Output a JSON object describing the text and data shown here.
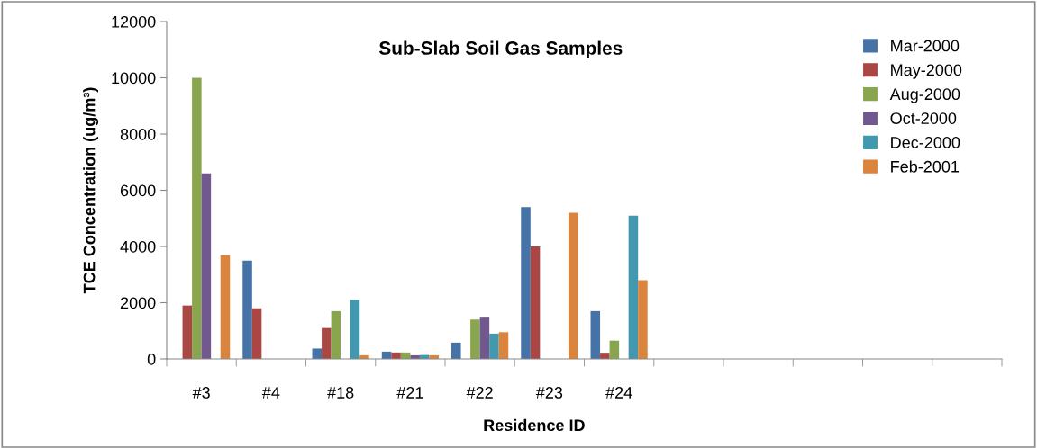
{
  "chart_data": {
    "type": "bar",
    "title": "Sub-Slab Soil Gas Samples",
    "xlabel": "Residence ID",
    "ylabel": "TCE Concentration (ug/m³)",
    "categories": [
      "#3",
      "#4",
      "#18",
      "#21",
      "#22",
      "#23",
      "#24",
      null,
      null,
      null,
      null,
      null
    ],
    "series": [
      {
        "name": "Mar-2000",
        "color": "#4572a7",
        "values": [
          null,
          3500,
          370,
          260,
          580,
          5400,
          1700,
          null,
          null,
          null,
          null,
          null
        ]
      },
      {
        "name": "May-2000",
        "color": "#aa4643",
        "values": [
          1900,
          1800,
          1100,
          230,
          null,
          4000,
          220,
          null,
          null,
          null,
          null,
          null
        ]
      },
      {
        "name": "Aug-2000",
        "color": "#89a54e",
        "values": [
          10000,
          null,
          1700,
          230,
          1400,
          null,
          650,
          null,
          null,
          null,
          null,
          null
        ]
      },
      {
        "name": "Oct-2000",
        "color": "#71588f",
        "values": [
          6600,
          null,
          null,
          130,
          1500,
          null,
          null,
          null,
          null,
          null,
          null,
          null
        ]
      },
      {
        "name": "Dec-2000",
        "color": "#4198af",
        "values": [
          null,
          null,
          2100,
          140,
          900,
          null,
          5100,
          null,
          null,
          null,
          null,
          null
        ]
      },
      {
        "name": "Feb-2001",
        "color": "#db843d",
        "values": [
          3700,
          null,
          130,
          130,
          950,
          5200,
          2800,
          null,
          null,
          null,
          null,
          null
        ]
      }
    ],
    "ylim": [
      0,
      12000
    ],
    "yticks": [
      0,
      2000,
      4000,
      6000,
      8000,
      10000,
      12000
    ],
    "grid": false,
    "legend": "top right"
  }
}
